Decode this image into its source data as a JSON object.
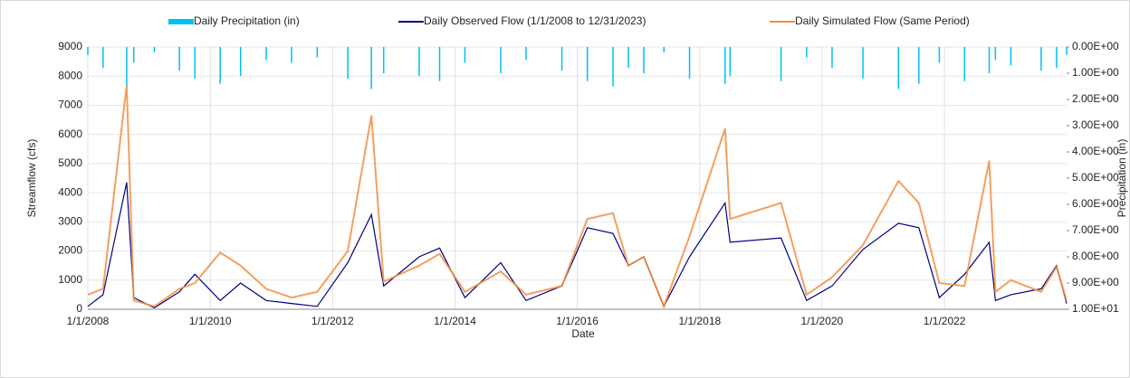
{
  "chart_data": {
    "type": "line",
    "xlabel": "Date",
    "ylabel": "Streamflow (cfs)",
    "y2label": "Precipitation (in)",
    "x": [
      "1/1/2008",
      "4/1/2008",
      "8/20/2008",
      "10/1/2008",
      "2/1/2009",
      "7/1/2009",
      "10/1/2009",
      "3/1/2010",
      "7/1/2010",
      "12/1/2010",
      "5/1/2011",
      "10/1/2011",
      "4/1/2012",
      "8/20/2012",
      "11/1/2012",
      "6/1/2013",
      "10/1/2013",
      "3/1/2014",
      "10/1/2014",
      "3/1/2015",
      "10/1/2015",
      "3/1/2016",
      "8/1/2016",
      "11/1/2016",
      "2/1/2017",
      "6/1/2017",
      "11/1/2017",
      "6/1/2018",
      "7/1/2018",
      "5/1/2019",
      "10/1/2019",
      "3/1/2020",
      "9/1/2020",
      "4/1/2021",
      "8/1/2021",
      "12/1/2021",
      "5/1/2022",
      "9/25/2022",
      "11/1/2022",
      "2/1/2023",
      "8/1/2023",
      "11/1/2023",
      "12/31/2023"
    ],
    "series": [
      {
        "name": "Daily Precipitation (in)",
        "color": "#00c0f0",
        "axis": "y2",
        "kind": "bar",
        "values": [
          0.3,
          0.8,
          1.5,
          0.6,
          0.2,
          0.9,
          1.2,
          1.4,
          1.1,
          0.5,
          0.6,
          0.4,
          1.2,
          1.6,
          1.0,
          1.1,
          1.3,
          0.6,
          1.0,
          0.5,
          0.9,
          1.3,
          1.5,
          0.8,
          1.0,
          0.2,
          1.2,
          1.4,
          1.1,
          1.3,
          0.4,
          0.8,
          1.2,
          1.6,
          1.4,
          0.6,
          1.3,
          1.0,
          0.5,
          0.7,
          0.9,
          0.8,
          0.3
        ]
      },
      {
        "name": "Daily Observed Flow (1/1/2008 to 12/31/2023)",
        "color": "#000080",
        "values": [
          100,
          500,
          4350,
          400,
          50,
          600,
          1200,
          300,
          900,
          300,
          200,
          100,
          1600,
          3250,
          800,
          1800,
          2100,
          400,
          1600,
          300,
          800,
          2800,
          2600,
          1500,
          1800,
          100,
          1800,
          3650,
          2300,
          2450,
          300,
          800,
          2050,
          2950,
          2800,
          400,
          1200,
          2300,
          300,
          500,
          700,
          1500,
          200
        ]
      },
      {
        "name": "Daily Simulated Flow (Same Period)",
        "color": "#f28e43",
        "values": [
          500,
          700,
          7700,
          300,
          100,
          700,
          900,
          1950,
          1500,
          700,
          400,
          600,
          2000,
          6650,
          950,
          1500,
          1900,
          600,
          1300,
          500,
          800,
          3100,
          3300,
          1500,
          1800,
          100,
          2500,
          6200,
          3100,
          3650,
          500,
          1100,
          2200,
          4400,
          3650,
          900,
          800,
          5100,
          600,
          1000,
          600,
          1450,
          300
        ]
      }
    ],
    "xlim": [
      "1/1/2008",
      "12/31/2023"
    ],
    "xticks": [
      "1/1/2008",
      "1/1/2010",
      "1/1/2012",
      "1/1/2014",
      "1/1/2016",
      "1/1/2018",
      "1/1/2020",
      "1/1/2022"
    ],
    "ylim": [
      0,
      9000
    ],
    "yticks": [
      0,
      1000,
      2000,
      3000,
      4000,
      5000,
      6000,
      7000,
      8000,
      9000
    ],
    "y2lim": [
      0,
      10
    ],
    "y2_reversed": true,
    "y2ticks": [
      {
        "value": 0,
        "label": "0.00E+00"
      },
      {
        "value": 1,
        "label": "1.00E+00"
      },
      {
        "value": 2,
        "label": "2.00E+00"
      },
      {
        "value": 3,
        "label": "3.00E+00"
      },
      {
        "value": 4,
        "label": "4.00E+00"
      },
      {
        "value": 5,
        "label": "5.00E+00"
      },
      {
        "value": 6,
        "label": "6.00E+00"
      },
      {
        "value": 7,
        "label": "7.00E+00"
      },
      {
        "value": 8,
        "label": "8.00E+00"
      },
      {
        "value": 9,
        "label": "9.00E+00"
      },
      {
        "value": 10,
        "label": "1.00E+01"
      }
    ],
    "grid": true
  }
}
